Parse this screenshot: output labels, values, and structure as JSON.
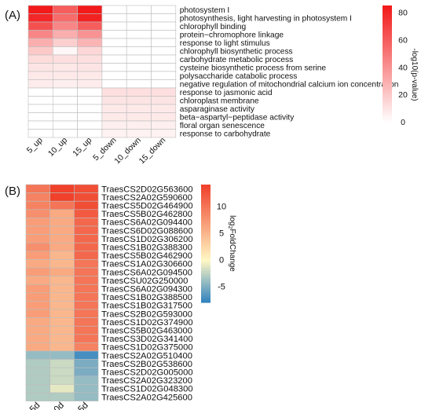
{
  "panel_a": {
    "label": "(A)",
    "legend_title": "-log10(p-value)",
    "legend_ticks": [
      80,
      60,
      40,
      20,
      0
    ]
  },
  "panel_b": {
    "label": "(B)",
    "legend_title": "log2FoldChange",
    "legend_ticks": [
      10,
      5,
      0,
      -5
    ]
  },
  "colors": {
    "a_low": "#ffffff",
    "a_high": "#f21a1a",
    "b_low": "#2b7fbf",
    "b_mid": "#fff8c4",
    "b_high": "#f0412b",
    "grid": "#bdbdbd"
  },
  "chart_data": [
    {
      "type": "heatmap",
      "title": "",
      "columns": [
        "5_up",
        "10_up",
        "15_up",
        "5_down",
        "10_down",
        "15_down"
      ],
      "rows": [
        "photosystem I",
        "photosynthesis, light harvesting in photosystem I",
        "chlorophyll binding",
        "protein−chromophore linkage",
        "response to light stimulus",
        "chlorophyll biosynthetic process",
        "carbohydrate metabolic process",
        "cysteine biosynthetic process from serine",
        "polysaccharide catabolic process",
        "negative regulation of mitochondrial calcium ion concentration",
        "response to jasmonic acid",
        "chloroplast membrane",
        "asparaginase activity",
        "beta−aspartyl−peptidase activity",
        "floral organ senescence",
        "response to carbohydrate"
      ],
      "values": [
        [
          85,
          60,
          85,
          0,
          0,
          0
        ],
        [
          80,
          55,
          82,
          0,
          0,
          0
        ],
        [
          65,
          45,
          60,
          0,
          0,
          0
        ],
        [
          45,
          30,
          40,
          0,
          0,
          0
        ],
        [
          30,
          18,
          28,
          0,
          0,
          0
        ],
        [
          20,
          3,
          15,
          0,
          0,
          0
        ],
        [
          13,
          12,
          12,
          0,
          0,
          0
        ],
        [
          10,
          9,
          10,
          0,
          0,
          0
        ],
        [
          8,
          8,
          8,
          0,
          0,
          0
        ],
        [
          7,
          6,
          7,
          0,
          0,
          0
        ],
        [
          0,
          0,
          0,
          12,
          12,
          12
        ],
        [
          0,
          0,
          0,
          10,
          10,
          10
        ],
        [
          0,
          0,
          0,
          8,
          8,
          8
        ],
        [
          0,
          0,
          0,
          8,
          8,
          8
        ],
        [
          0,
          0,
          0,
          6,
          6,
          6
        ],
        [
          0,
          0,
          0,
          5,
          5,
          5
        ]
      ],
      "colorbar": {
        "label": "-log10(p-value)",
        "range": [
          0,
          85
        ],
        "ticks": [
          0,
          20,
          40,
          60,
          80
        ]
      }
    },
    {
      "type": "heatmap",
      "title": "",
      "columns": [
        "5d",
        "10d",
        "15d"
      ],
      "rows": [
        "TraesCS2D02G563600",
        "TraesCS2A02G590600",
        "TraesCS5D02G464900",
        "TraesCS5B02G462800",
        "TraesCS6A02G094400",
        "TraesCS6D02G088600",
        "TraesCS1D02G306200",
        "TraesCS1B02G388300",
        "TraesCS5B02G462900",
        "TraesCS1A02G306600",
        "TraesCS6A02G094500",
        "TraesCSU02G250000",
        "TraesCS6A02G094300",
        "TraesCS1B02G388500",
        "TraesCS1B02G317500",
        "TraesCS2B02G593000",
        "TraesCS1D02G374900",
        "TraesCS5B02G463000",
        "TraesCS3D02G341400",
        "TraesCS1D02G375000",
        "TraesCS2A02G510400",
        "TraesCS2B02G538600",
        "TraesCS2D02G005000",
        "TraesCS2A02G323200",
        "TraesCS1D02G048300",
        "TraesCS2A02G425600"
      ],
      "values": [
        [
          10,
          14,
          13
        ],
        [
          9,
          14,
          13
        ],
        [
          9,
          10,
          13
        ],
        [
          8,
          6,
          12
        ],
        [
          7,
          6,
          11
        ],
        [
          7,
          6,
          11
        ],
        [
          7,
          6,
          11
        ],
        [
          8,
          6,
          11
        ],
        [
          7,
          5,
          11
        ],
        [
          6,
          5,
          10
        ],
        [
          7,
          6,
          10
        ],
        [
          6,
          5,
          10
        ],
        [
          7,
          5,
          10
        ],
        [
          7,
          5,
          10
        ],
        [
          7,
          5,
          10
        ],
        [
          7,
          5,
          10
        ],
        [
          6,
          5,
          10
        ],
        [
          6,
          5,
          10
        ],
        [
          6,
          5,
          10
        ],
        [
          6,
          5,
          9
        ],
        [
          -4,
          -4,
          -7
        ],
        [
          -3,
          -2,
          -5
        ],
        [
          -3,
          -2,
          -5
        ],
        [
          -3,
          -2,
          -4
        ],
        [
          -3,
          -1,
          -4
        ],
        [
          -3,
          -3,
          -4
        ]
      ],
      "colorbar": {
        "label": "log2FoldChange",
        "range": [
          -8,
          14
        ],
        "ticks": [
          -5,
          0,
          5,
          10
        ]
      }
    }
  ]
}
